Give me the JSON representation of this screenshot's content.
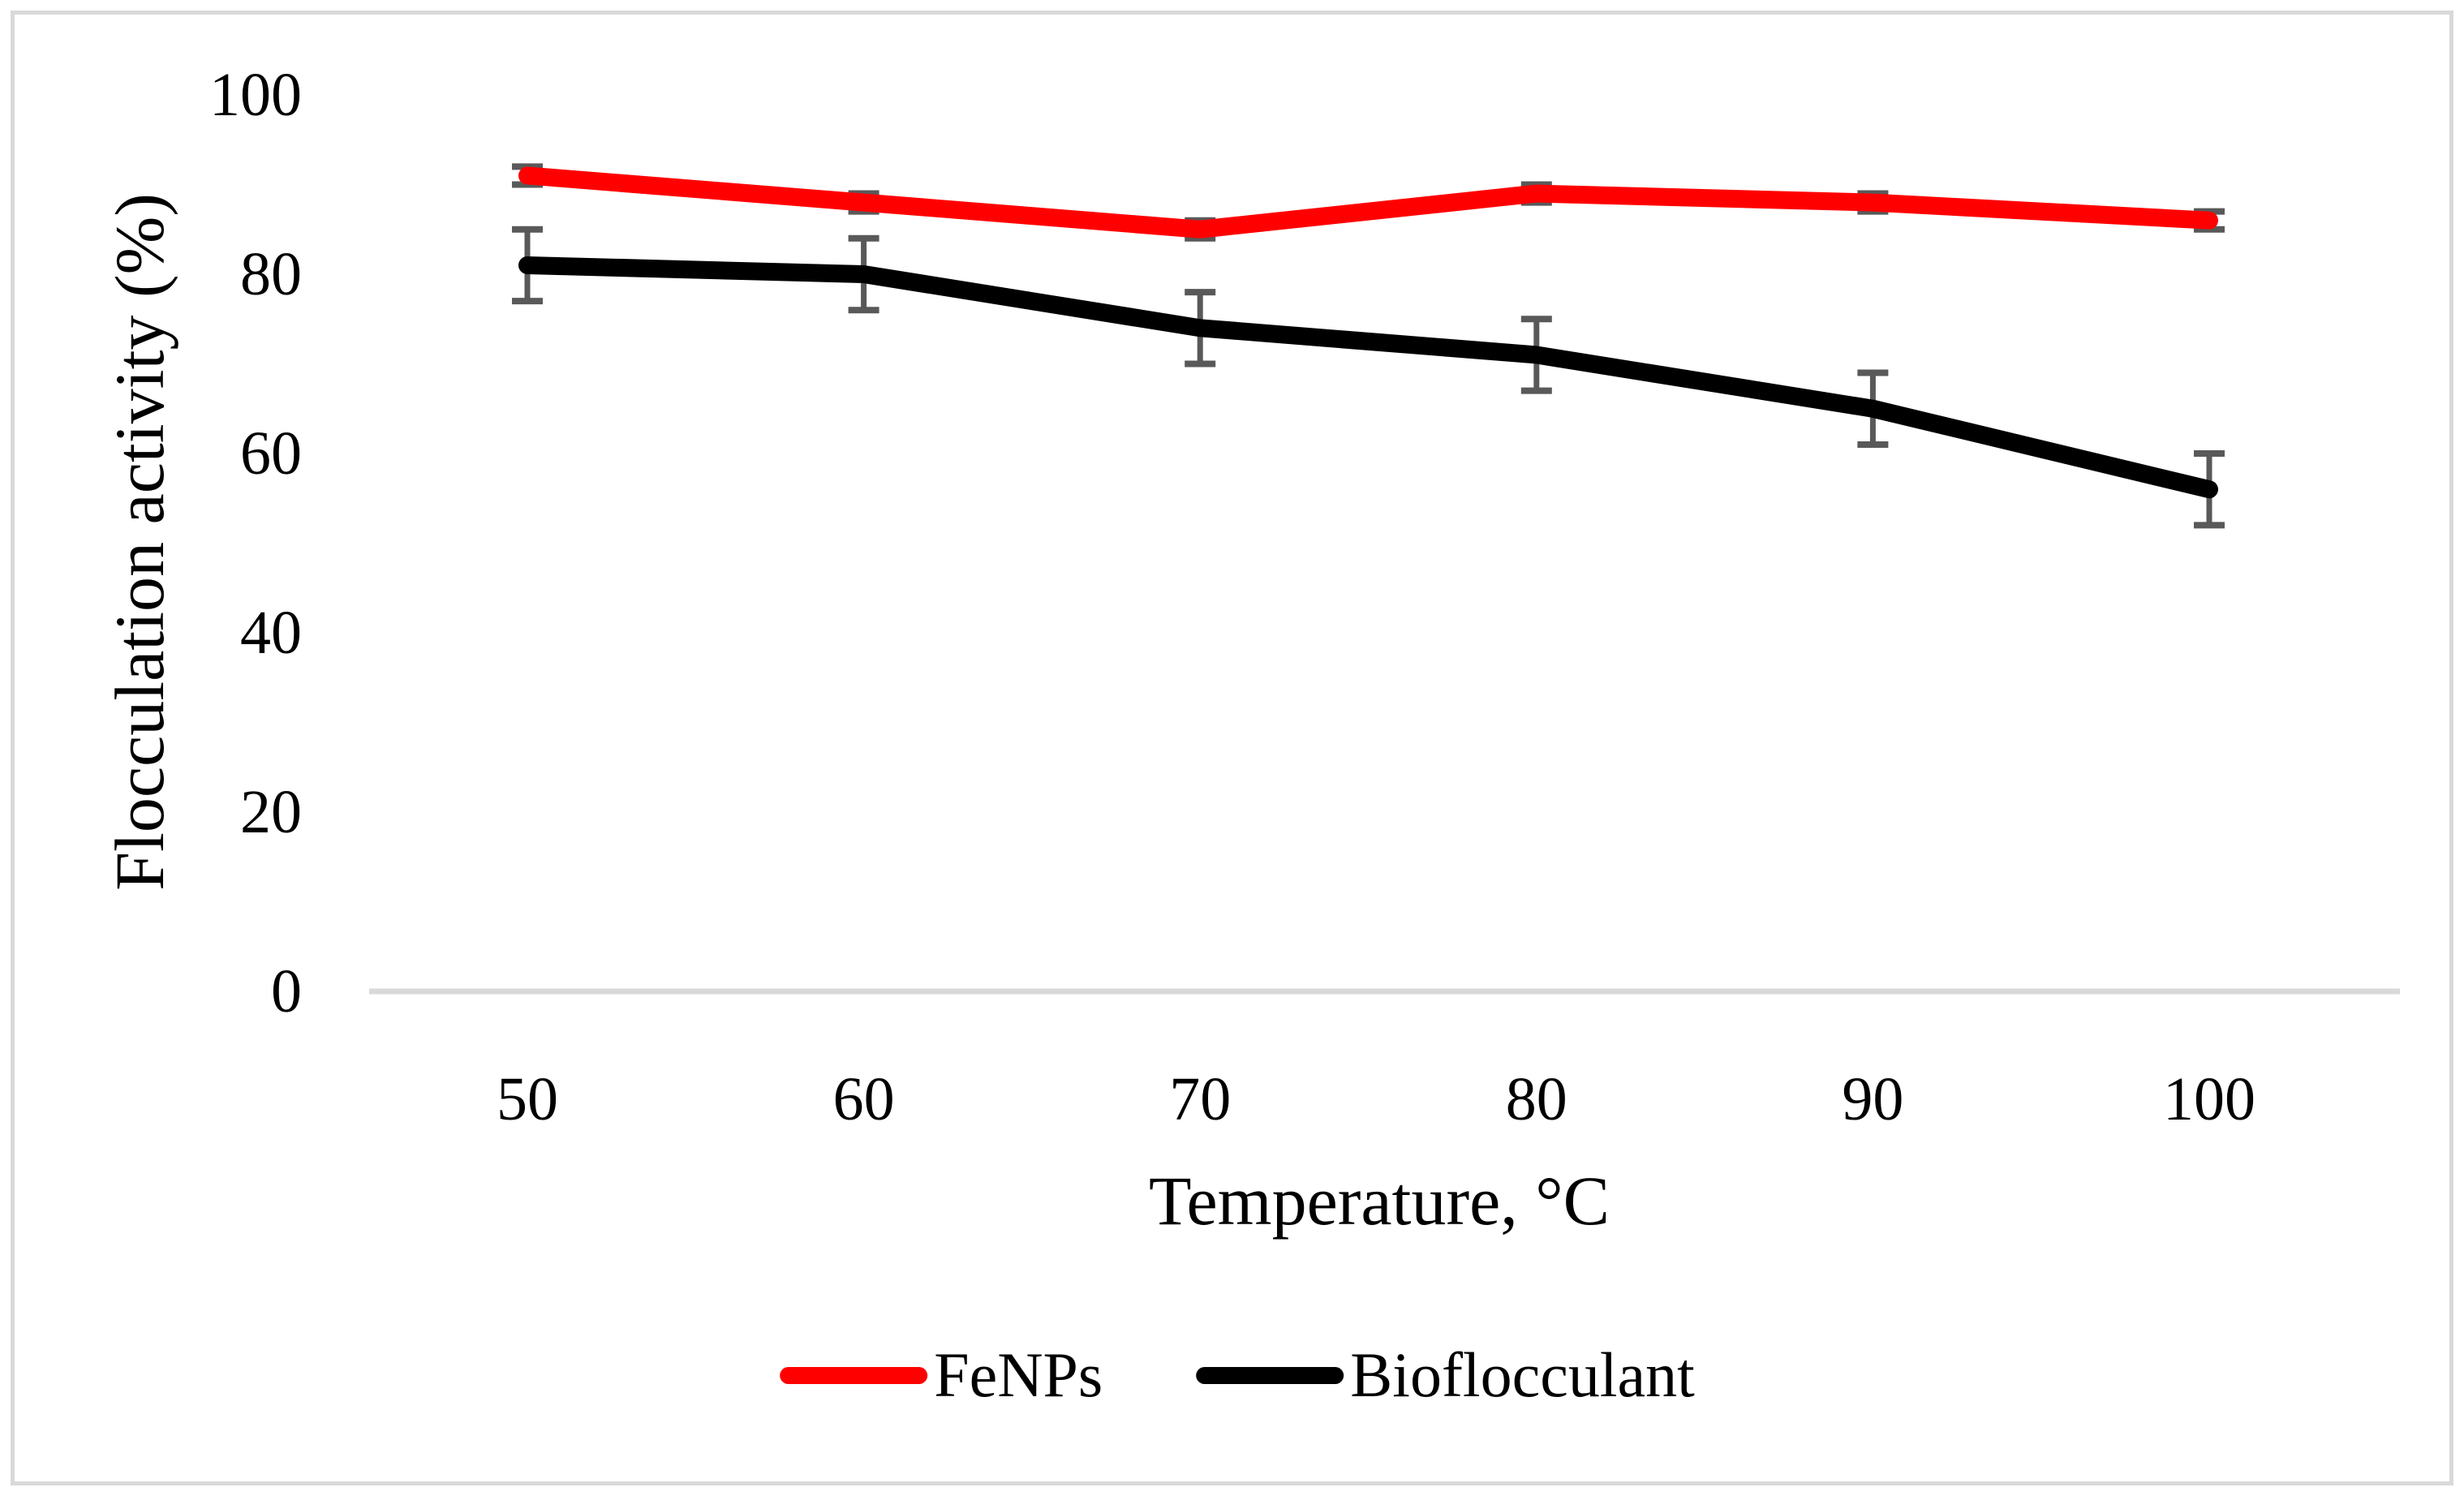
{
  "figure": {
    "type_hint": "journal-style line chart with error bars, framed by a light gray border"
  },
  "chart_data": {
    "type": "line",
    "x": [
      50,
      60,
      70,
      80,
      90,
      100
    ],
    "x_tick_labels": [
      "50",
      "60",
      "70",
      "80",
      "90",
      "100"
    ],
    "y_ticks": [
      0,
      20,
      40,
      60,
      80,
      100
    ],
    "y_tick_labels": [
      "0",
      "20",
      "40",
      "60",
      "80",
      "100"
    ],
    "xlabel": "Temperature, °C",
    "ylabel": "Flocculation activity (%)",
    "title": "",
    "xlim": [
      45,
      105
    ],
    "ylim": [
      0,
      100
    ],
    "grid": false,
    "legend_position": "bottom-center",
    "axis_line_color": "#d9d9d9",
    "error_bar_color": "#595959",
    "series": [
      {
        "name": "FeNPs",
        "color": "#ff0000",
        "values": [
          91,
          88,
          85,
          89,
          88,
          86
        ],
        "error": [
          1,
          1,
          1,
          1,
          1,
          1
        ]
      },
      {
        "name": "Bioflocculant",
        "color": "#000000",
        "values": [
          81,
          80,
          74,
          71,
          65,
          56
        ],
        "error": [
          4,
          4,
          4,
          4,
          4,
          4
        ]
      }
    ]
  }
}
